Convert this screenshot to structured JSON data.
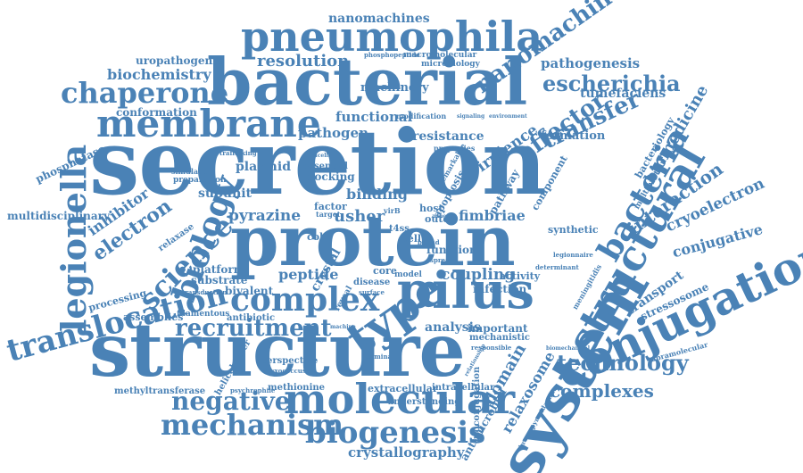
{
  "accent_color": "#4a82b6",
  "words": {
    "secretion": "secretion",
    "structure": "structure",
    "protein": "protein",
    "bacterial": "bacterial",
    "system": "system",
    "pneumophila": "pneumophila",
    "membrane": "membrane",
    "conjugation": "conjugation",
    "structural": "structural",
    "type": "type",
    "pilus": "pilus",
    "molecular": "molecular",
    "biogenesis": "biogenesis",
    "mechanism": "mechanism",
    "legionella": "legionella",
    "translocation": "translocation",
    "chaperone": "chaperone",
    "complex": "complex",
    "biology": "biology",
    "science": "science",
    "recruitment": "recruitment",
    "negative": "negative",
    "bacteria": "bacteria",
    "technology": "technology",
    "complexes": "complexes",
    "escherichia": "escherichia",
    "effector": "effector",
    "transfer": "transfer",
    "nanomachine": "nanomachine",
    "nanomachines": "nanomachines",
    "resolution": "resolution",
    "machinery": "machinery",
    "biochemistry": "biochemistry",
    "uropathogenic": "uropathogenic",
    "conformation": "conformation",
    "pathogenesis": "pathogenesis",
    "tumefaciens": "tumefaciens",
    "interaction": "interaction",
    "biomedicine": "biomedicine",
    "cryoelectron": "cryoelectron",
    "conjugative": "conjugative",
    "crystallography": "crystallography",
    "relaxosome": "relaxosome",
    "domain": "domain",
    "phosphatase": "phosphatase",
    "multidisciplinary": "multidisciplinary",
    "inhibitor": "inhibitor",
    "electron": "electron",
    "pyrazine": "pyrazine",
    "usher": "usher",
    "fimbriae": "fimbriae",
    "coupling": "coupling",
    "peptide": "peptide",
    "subunit": "subunit",
    "plasmid": "plasmid",
    "functional": "functional",
    "pathogen": "pathogen",
    "resistance": "resistance",
    "formation": "formation",
    "virulence": "virulence",
    "binding": "binding",
    "docking": "docking",
    "essential": "essential",
    "transport": "transport",
    "stressosome": "stressosome",
    "bivalent": "bivalent",
    "substrate": "substrate",
    "platform": "platform",
    "assemblies": "assemblies",
    "filamentous": "filamentous",
    "antibiotic": "antibiotic",
    "processing": "processing",
    "relaxase": "relaxase",
    "helicobacter": "helicobacter",
    "methyltransferase": "methyltransferase",
    "methionine": "methionine",
    "extracellular": "extracellular",
    "intracellular": "intracellular",
    "understanding": "understanding",
    "analysis": "analysis",
    "important": "important",
    "mechanistic": "mechanistic",
    "infection": "infection",
    "activity": "activity",
    "antimicrobial": "antimicrobial",
    "bioconjugation": "bioconjugation",
    "pathway": "pathway",
    "apoptosis": "apoptosis",
    "crystal": "crystal",
    "perspective": "perspective",
    "bacteriology": "bacteriology",
    "synthetic": "synthetic",
    "component": "component",
    "multiprotein": "multiprotein",
    "microbiology": "microbiology",
    "macromolecular": "macromolecular",
    "phosphopeptide": "phosphopeptide",
    "modification": "modification",
    "core": "core",
    "function": "function",
    "model": "model",
    "disease": "disease",
    "factor": "factor",
    "host": "host",
    "outer": "outer",
    "coli": "coli",
    "cell": "cell",
    "t4ss": "t4ss",
    "supramolecular": "supramolecular",
    "virB": "virB",
    "cup": "cupB",
    "reveal": "reveal",
    "simulation": "simulation",
    "preparation": "preparation",
    "transduction": "transduction",
    "trafficking": "trafficking",
    "lysosomal": "lysosomal",
    "psychrophile": "psychrophile",
    "myxococcus": "myxococcus",
    "meningitidis": "meningitidis",
    "legionnaire": "legionnaire",
    "determinant": "determinant",
    "remarkable": "remarkable",
    "properties": "properties",
    "responsible": "responsible",
    "spread": "spread",
    "attachment": "attachment",
    "signaling": "signaling",
    "environment": "environment",
    "adhesin": "adhesin",
    "tetrameric": "tetrameric",
    "insight": "insight",
    "target": "target",
    "surface": "surface",
    "terminal": "terminal",
    "brucella": "brucella",
    "flexible": "flexible",
    "bound": "bound",
    "design": "design",
    "binuclear": "binuclear",
    "recognition": "recognition",
    "characterization": "characterization",
    "pseudomonas": "pseudomonas",
    "diversity": "diversity",
    "cleavage": "cleavage",
    "bromopyrazidamine": "bromopyrazidamine",
    "biomechanical": "biomechanical",
    "symposium": "symposium",
    "relationship": "relationship",
    "antigen": "antigen",
    "biotechnology": "biotechnology",
    "machine": "machine"
  }
}
